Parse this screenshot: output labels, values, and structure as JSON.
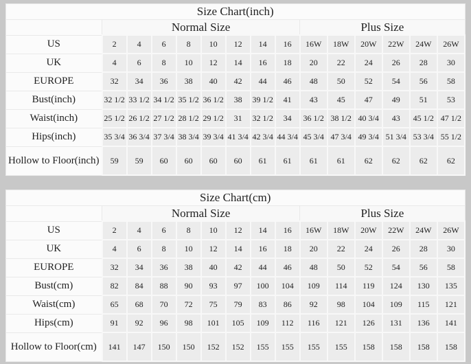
{
  "colors": {
    "page_background": "#c8c8c8",
    "data_cell_background": "#ececec",
    "label_cell_background": "#fbfbfb",
    "grid_line": "#e9e9e9",
    "text": "#1f1f1f"
  },
  "chart_data": [
    {
      "type": "table",
      "title": "Size Chart(inch)",
      "column_groups": [
        {
          "label": "Normal Size",
          "span": 8
        },
        {
          "label": "Plus Size",
          "span": 6
        }
      ],
      "rows": [
        {
          "label": "US",
          "values": [
            "2",
            "4",
            "6",
            "8",
            "10",
            "12",
            "14",
            "16",
            "16W",
            "18W",
            "20W",
            "22W",
            "24W",
            "26W"
          ]
        },
        {
          "label": "UK",
          "values": [
            "4",
            "6",
            "8",
            "10",
            "12",
            "14",
            "16",
            "18",
            "20",
            "22",
            "24",
            "26",
            "28",
            "30"
          ]
        },
        {
          "label": "EUROPE",
          "values": [
            "32",
            "34",
            "36",
            "38",
            "40",
            "42",
            "44",
            "46",
            "48",
            "50",
            "52",
            "54",
            "56",
            "58"
          ]
        },
        {
          "label": "Bust(inch)",
          "values": [
            "32 1/2",
            "33 1/2",
            "34 1/2",
            "35 1/2",
            "36 1/2",
            "38",
            "39 1/2",
            "41",
            "43",
            "45",
            "47",
            "49",
            "51",
            "53"
          ]
        },
        {
          "label": "Waist(inch)",
          "values": [
            "25 1/2",
            "26 1/2",
            "27 1/2",
            "28 1/2",
            "29 1/2",
            "31",
            "32 1/2",
            "34",
            "36 1/2",
            "38 1/2",
            "40 3/4",
            "43",
            "45 1/2",
            "47 1/2"
          ]
        },
        {
          "label": "Hips(inch)",
          "values": [
            "35 3/4",
            "36 3/4",
            "37 3/4",
            "38 3/4",
            "39 3/4",
            "41 3/4",
            "42 3/4",
            "44 3/4",
            "45 3/4",
            "47 3/4",
            "49 3/4",
            "51 3/4",
            "53 3/4",
            "55 1/2"
          ]
        },
        {
          "label": "Hollow to Floor(inch)",
          "values": [
            "59",
            "59",
            "60",
            "60",
            "60",
            "60",
            "61",
            "61",
            "61",
            "61",
            "62",
            "62",
            "62",
            "62"
          ]
        }
      ]
    },
    {
      "type": "table",
      "title": "Size Chart(cm)",
      "column_groups": [
        {
          "label": "Normal Size",
          "span": 8
        },
        {
          "label": "Plus Size",
          "span": 6
        }
      ],
      "rows": [
        {
          "label": "US",
          "values": [
            "2",
            "4",
            "6",
            "8",
            "10",
            "12",
            "14",
            "16",
            "16W",
            "18W",
            "20W",
            "22W",
            "24W",
            "26W"
          ]
        },
        {
          "label": "UK",
          "values": [
            "4",
            "6",
            "8",
            "10",
            "12",
            "14",
            "16",
            "18",
            "20",
            "22",
            "24",
            "26",
            "28",
            "30"
          ]
        },
        {
          "label": "EUROPE",
          "values": [
            "32",
            "34",
            "36",
            "38",
            "40",
            "42",
            "44",
            "46",
            "48",
            "50",
            "52",
            "54",
            "56",
            "58"
          ]
        },
        {
          "label": "Bust(cm)",
          "values": [
            "82",
            "84",
            "88",
            "90",
            "93",
            "97",
            "100",
            "104",
            "109",
            "114",
            "119",
            "124",
            "130",
            "135"
          ]
        },
        {
          "label": "Waist(cm)",
          "values": [
            "65",
            "68",
            "70",
            "72",
            "75",
            "79",
            "83",
            "86",
            "92",
            "98",
            "104",
            "109",
            "115",
            "121"
          ]
        },
        {
          "label": "Hips(cm)",
          "values": [
            "91",
            "92",
            "96",
            "98",
            "101",
            "105",
            "109",
            "112",
            "116",
            "121",
            "126",
            "131",
            "136",
            "141"
          ]
        },
        {
          "label": "Hollow to Floor(cm)",
          "values": [
            "141",
            "147",
            "150",
            "150",
            "152",
            "152",
            "155",
            "155",
            "155",
            "155",
            "158",
            "158",
            "158",
            "158"
          ]
        }
      ]
    }
  ]
}
